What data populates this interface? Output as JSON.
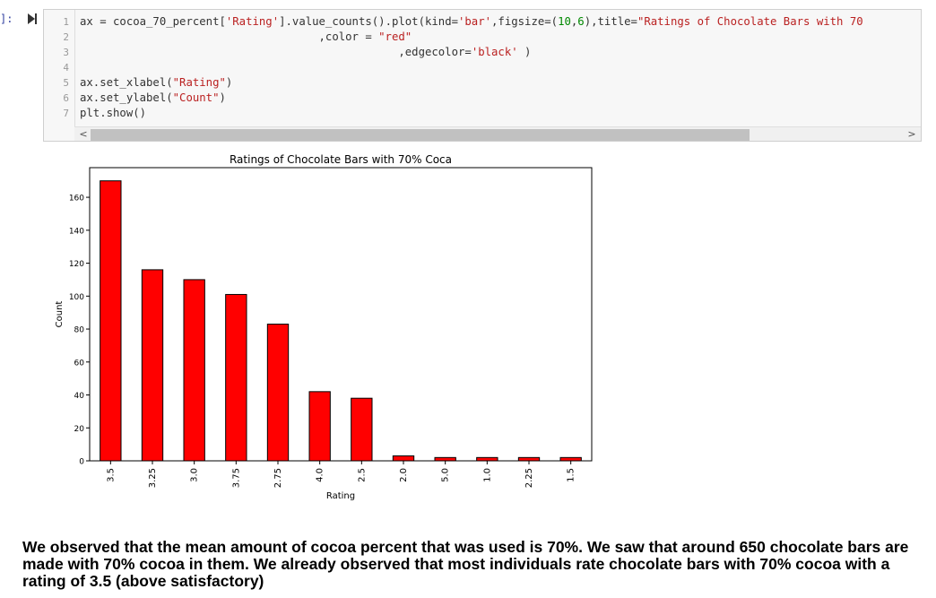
{
  "cell": {
    "prompt": "]:",
    "line_numbers": [
      "1",
      "2",
      "3",
      "4",
      "5",
      "6",
      "7"
    ],
    "code": {
      "line1_a": "ax = cocoa_70_percent[",
      "line1_b": "'Rating'",
      "line1_c": "].value_counts().plot(kind=",
      "line1_d": "'bar'",
      "line1_e": ",figsize=(",
      "line1_f": "10",
      "line1_g": ",",
      "line1_h": "6",
      "line1_i": "),title=",
      "line1_j": "\"Ratings of Chocolate Bars with 70",
      "line2_a": "                                    ,color = ",
      "line2_b": "\"red\"",
      "line3_a": "                                                ,edgecolor=",
      "line3_b": "'black'",
      "line3_c": " )",
      "line5_a": "ax.set_xlabel(",
      "line5_b": "\"Rating\"",
      "line5_c": ")",
      "line6_a": "ax.set_ylabel(",
      "line6_b": "\"Count\"",
      "line6_c": ")",
      "line7": "plt.show()"
    },
    "scroll_left": "<",
    "scroll_right": ">"
  },
  "chart_data": {
    "type": "bar",
    "title": "Ratings of Chocolate Bars with 70% Coca",
    "xlabel": "Rating",
    "ylabel": "Count",
    "categories": [
      "3.5",
      "3.25",
      "3.0",
      "3.75",
      "2.75",
      "4.0",
      "2.5",
      "2.0",
      "5.0",
      "1.0",
      "2.25",
      "1.5"
    ],
    "values": [
      170,
      116,
      110,
      101,
      83,
      42,
      38,
      3,
      2,
      2,
      2,
      2
    ],
    "ylim": [
      0,
      178
    ],
    "yticks": [
      0,
      20,
      40,
      60,
      80,
      100,
      120,
      140,
      160
    ],
    "bar_color": "#ff0000",
    "edge_color": "#000000",
    "grid": false,
    "legend": false
  },
  "note": {
    "text": "We observed that the mean amount of cocoa percent that was used is 70%. We saw that around 650 chocolate bars are made with 70% cocoa in them. We already observed that most individuals rate chocolate bars with 70% cocoa with a rating of 3.5 (above satisfactory)"
  },
  "icons": {
    "run": "run-cell-icon"
  }
}
